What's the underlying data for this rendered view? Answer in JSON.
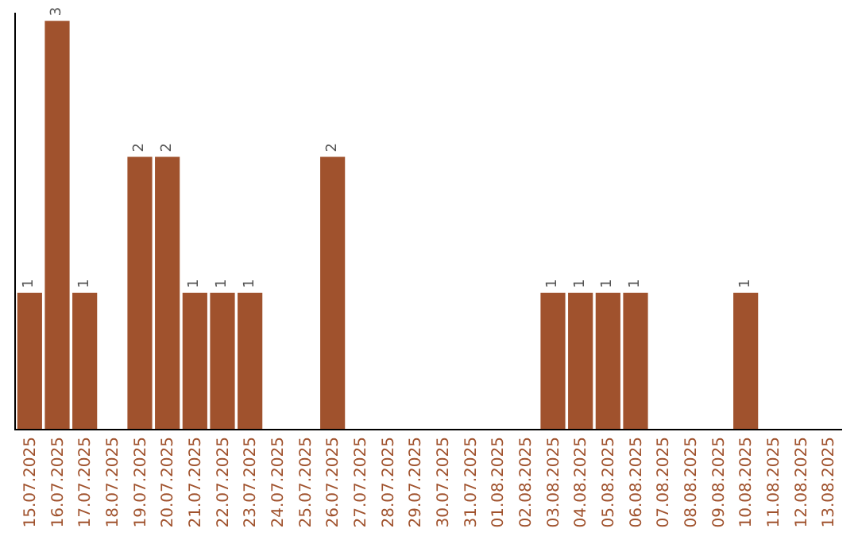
{
  "chart_data": {
    "type": "bar",
    "categories": [
      "15.07.2025",
      "16.07.2025",
      "17.07.2025",
      "18.07.2025",
      "19.07.2025",
      "20.07.2025",
      "21.07.2025",
      "22.07.2025",
      "23.07.2025",
      "24.07.2025",
      "25.07.2025",
      "26.07.2025",
      "27.07.2025",
      "28.07.2025",
      "29.07.2025",
      "30.07.2025",
      "31.07.2025",
      "01.08.2025",
      "02.08.2025",
      "03.08.2025",
      "04.08.2025",
      "05.08.2025",
      "06.08.2025",
      "07.08.2025",
      "08.08.2025",
      "09.08.2025",
      "10.08.2025",
      "11.08.2025",
      "12.08.2025",
      "13.08.2025"
    ],
    "values": [
      1,
      3,
      1,
      0,
      2,
      2,
      1,
      1,
      1,
      0,
      0,
      2,
      0,
      0,
      0,
      0,
      0,
      0,
      0,
      1,
      1,
      1,
      1,
      0,
      0,
      0,
      1,
      0,
      0,
      0
    ],
    "value_labels": [
      "1",
      "3",
      "1",
      null,
      "2",
      "2",
      "1",
      "1",
      "1",
      null,
      null,
      "2",
      null,
      null,
      null,
      null,
      null,
      null,
      null,
      "1",
      "1",
      "1",
      "1",
      null,
      null,
      null,
      "1",
      null,
      null,
      null
    ],
    "color": "#a0522d",
    "tick_labels": "x",
    "legend": false
  }
}
